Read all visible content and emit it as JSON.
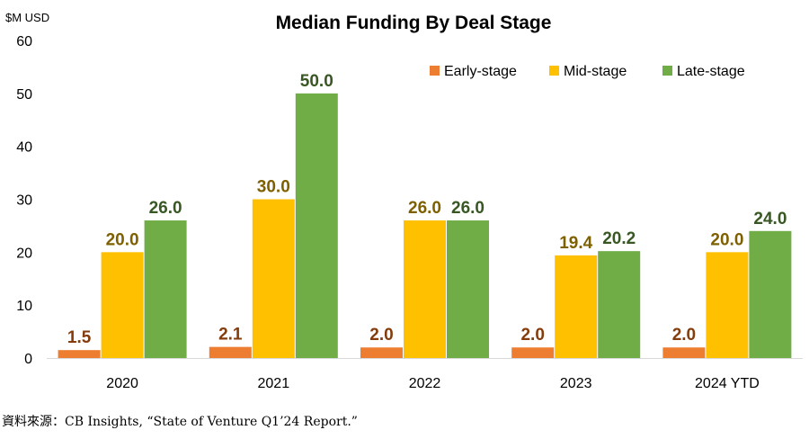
{
  "chart_data": {
    "type": "bar",
    "title": "Median Funding By Deal Stage",
    "ylabel": "$M USD",
    "xlabel": "",
    "ylim": [
      0,
      60
    ],
    "yticks": [
      0,
      10,
      20,
      30,
      40,
      50,
      60
    ],
    "grid": false,
    "legend_position": "top-right",
    "categories": [
      "2020",
      "2021",
      "2022",
      "2023",
      "2024 YTD"
    ],
    "series": [
      {
        "name": "Early-stage",
        "color": "#ED7D31",
        "label_color": "#843C0C",
        "values": [
          1.5,
          2.1,
          2.0,
          2.0,
          2.0
        ],
        "labels": [
          "1.5",
          "2.1",
          "2.0",
          "2.0",
          "2.0"
        ]
      },
      {
        "name": "Mid-stage",
        "color": "#FFC000",
        "label_color": "#7F6000",
        "values": [
          20.0,
          30.0,
          26.0,
          19.4,
          20.0
        ],
        "labels": [
          "20.0",
          "30.0",
          "26.0",
          "19.4",
          "20.0"
        ]
      },
      {
        "name": "Late-stage",
        "color": "#70AD47",
        "label_color": "#385723",
        "values": [
          26.0,
          50.0,
          26.0,
          20.2,
          24.0
        ],
        "labels": [
          "26.0",
          "50.0",
          "26.0",
          "20.2",
          "24.0"
        ]
      }
    ]
  },
  "source": "資料來源：CB Insights, “State of Venture Q1’24 Report.”"
}
